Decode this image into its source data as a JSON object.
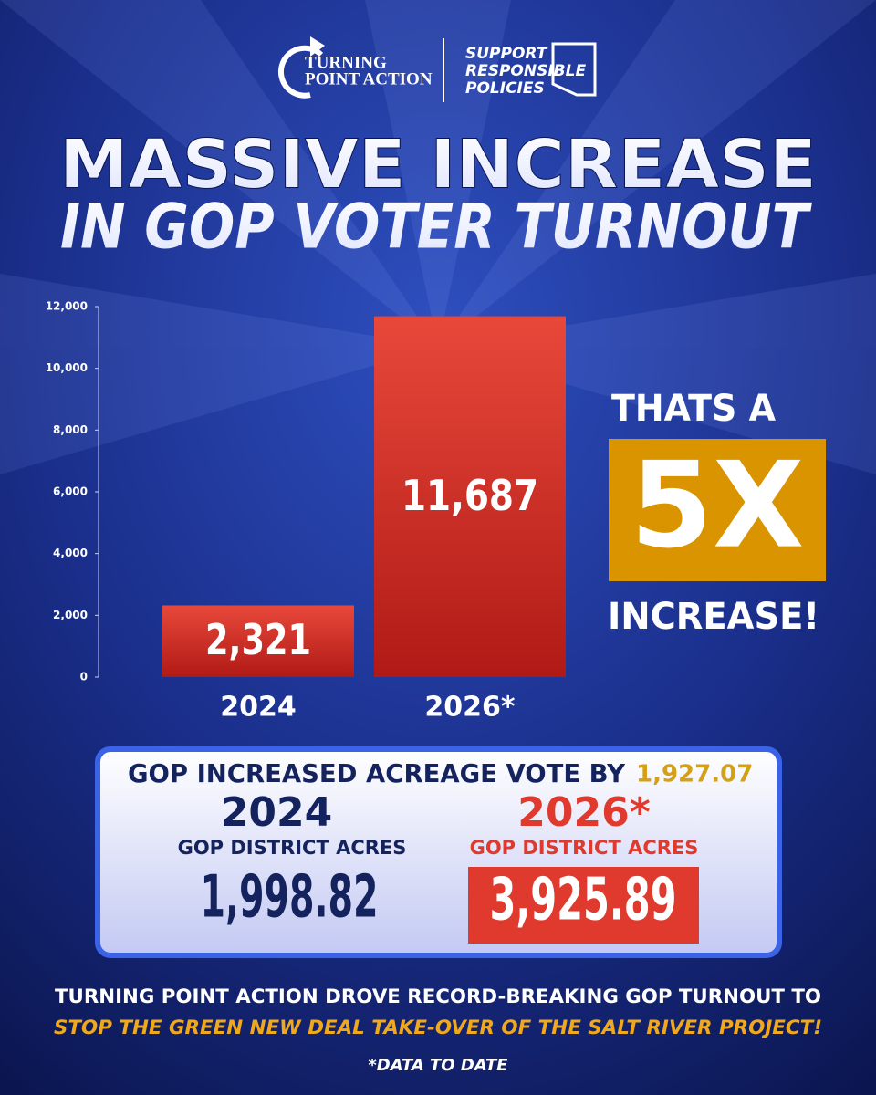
{
  "header": {
    "logo_left": [
      "TURNING",
      "POINT ACTION"
    ],
    "logo_right": [
      "SUPPORT",
      "RESPONSIBLE",
      "POLICIES"
    ]
  },
  "title": [
    "MASSIVE INCREASE",
    "IN GOP VOTER TURNOUT"
  ],
  "chart_data": {
    "type": "bar",
    "categories": [
      "2024",
      "2026*"
    ],
    "values": [
      2321,
      11687
    ],
    "value_labels": [
      "2,321",
      "11,687"
    ],
    "color": "#e8483a",
    "ylim": [
      0,
      12000
    ],
    "yticks": [
      0,
      {
        "value": 2000,
        "label": "2,000"
      },
      {
        "value": 4000,
        "label": "4,000"
      },
      {
        "value": 6000,
        "label": "6,000"
      },
      {
        "value": 8000,
        "label": "8,000"
      },
      {
        "value": 10000,
        "label": "10,000"
      },
      {
        "value": 12000,
        "label": "12,000"
      }
    ]
  },
  "callout": {
    "line1": "THATS A",
    "big": "5X",
    "line2": "INCREASE!"
  },
  "stats": {
    "heading": "GOP INCREASED ACREAGE VOTE BY",
    "heading_value": "1,927.07",
    "items": [
      {
        "year": "2024",
        "label": "GOP DISTRICT ACRES",
        "value": "1,998.82"
      },
      {
        "year": "2026*",
        "label": "GOP DISTRICT ACRES",
        "value": "3,925.89"
      }
    ]
  },
  "footer": {
    "line1": "TURNING POINT ACTION DROVE RECORD-BREAKING GOP TURNOUT TO",
    "line2": "STOP THE GREEN NEW DEAL TAKE-OVER OF THE SALT RIVER PROJECT!",
    "note": "*DATA TO DATE"
  }
}
